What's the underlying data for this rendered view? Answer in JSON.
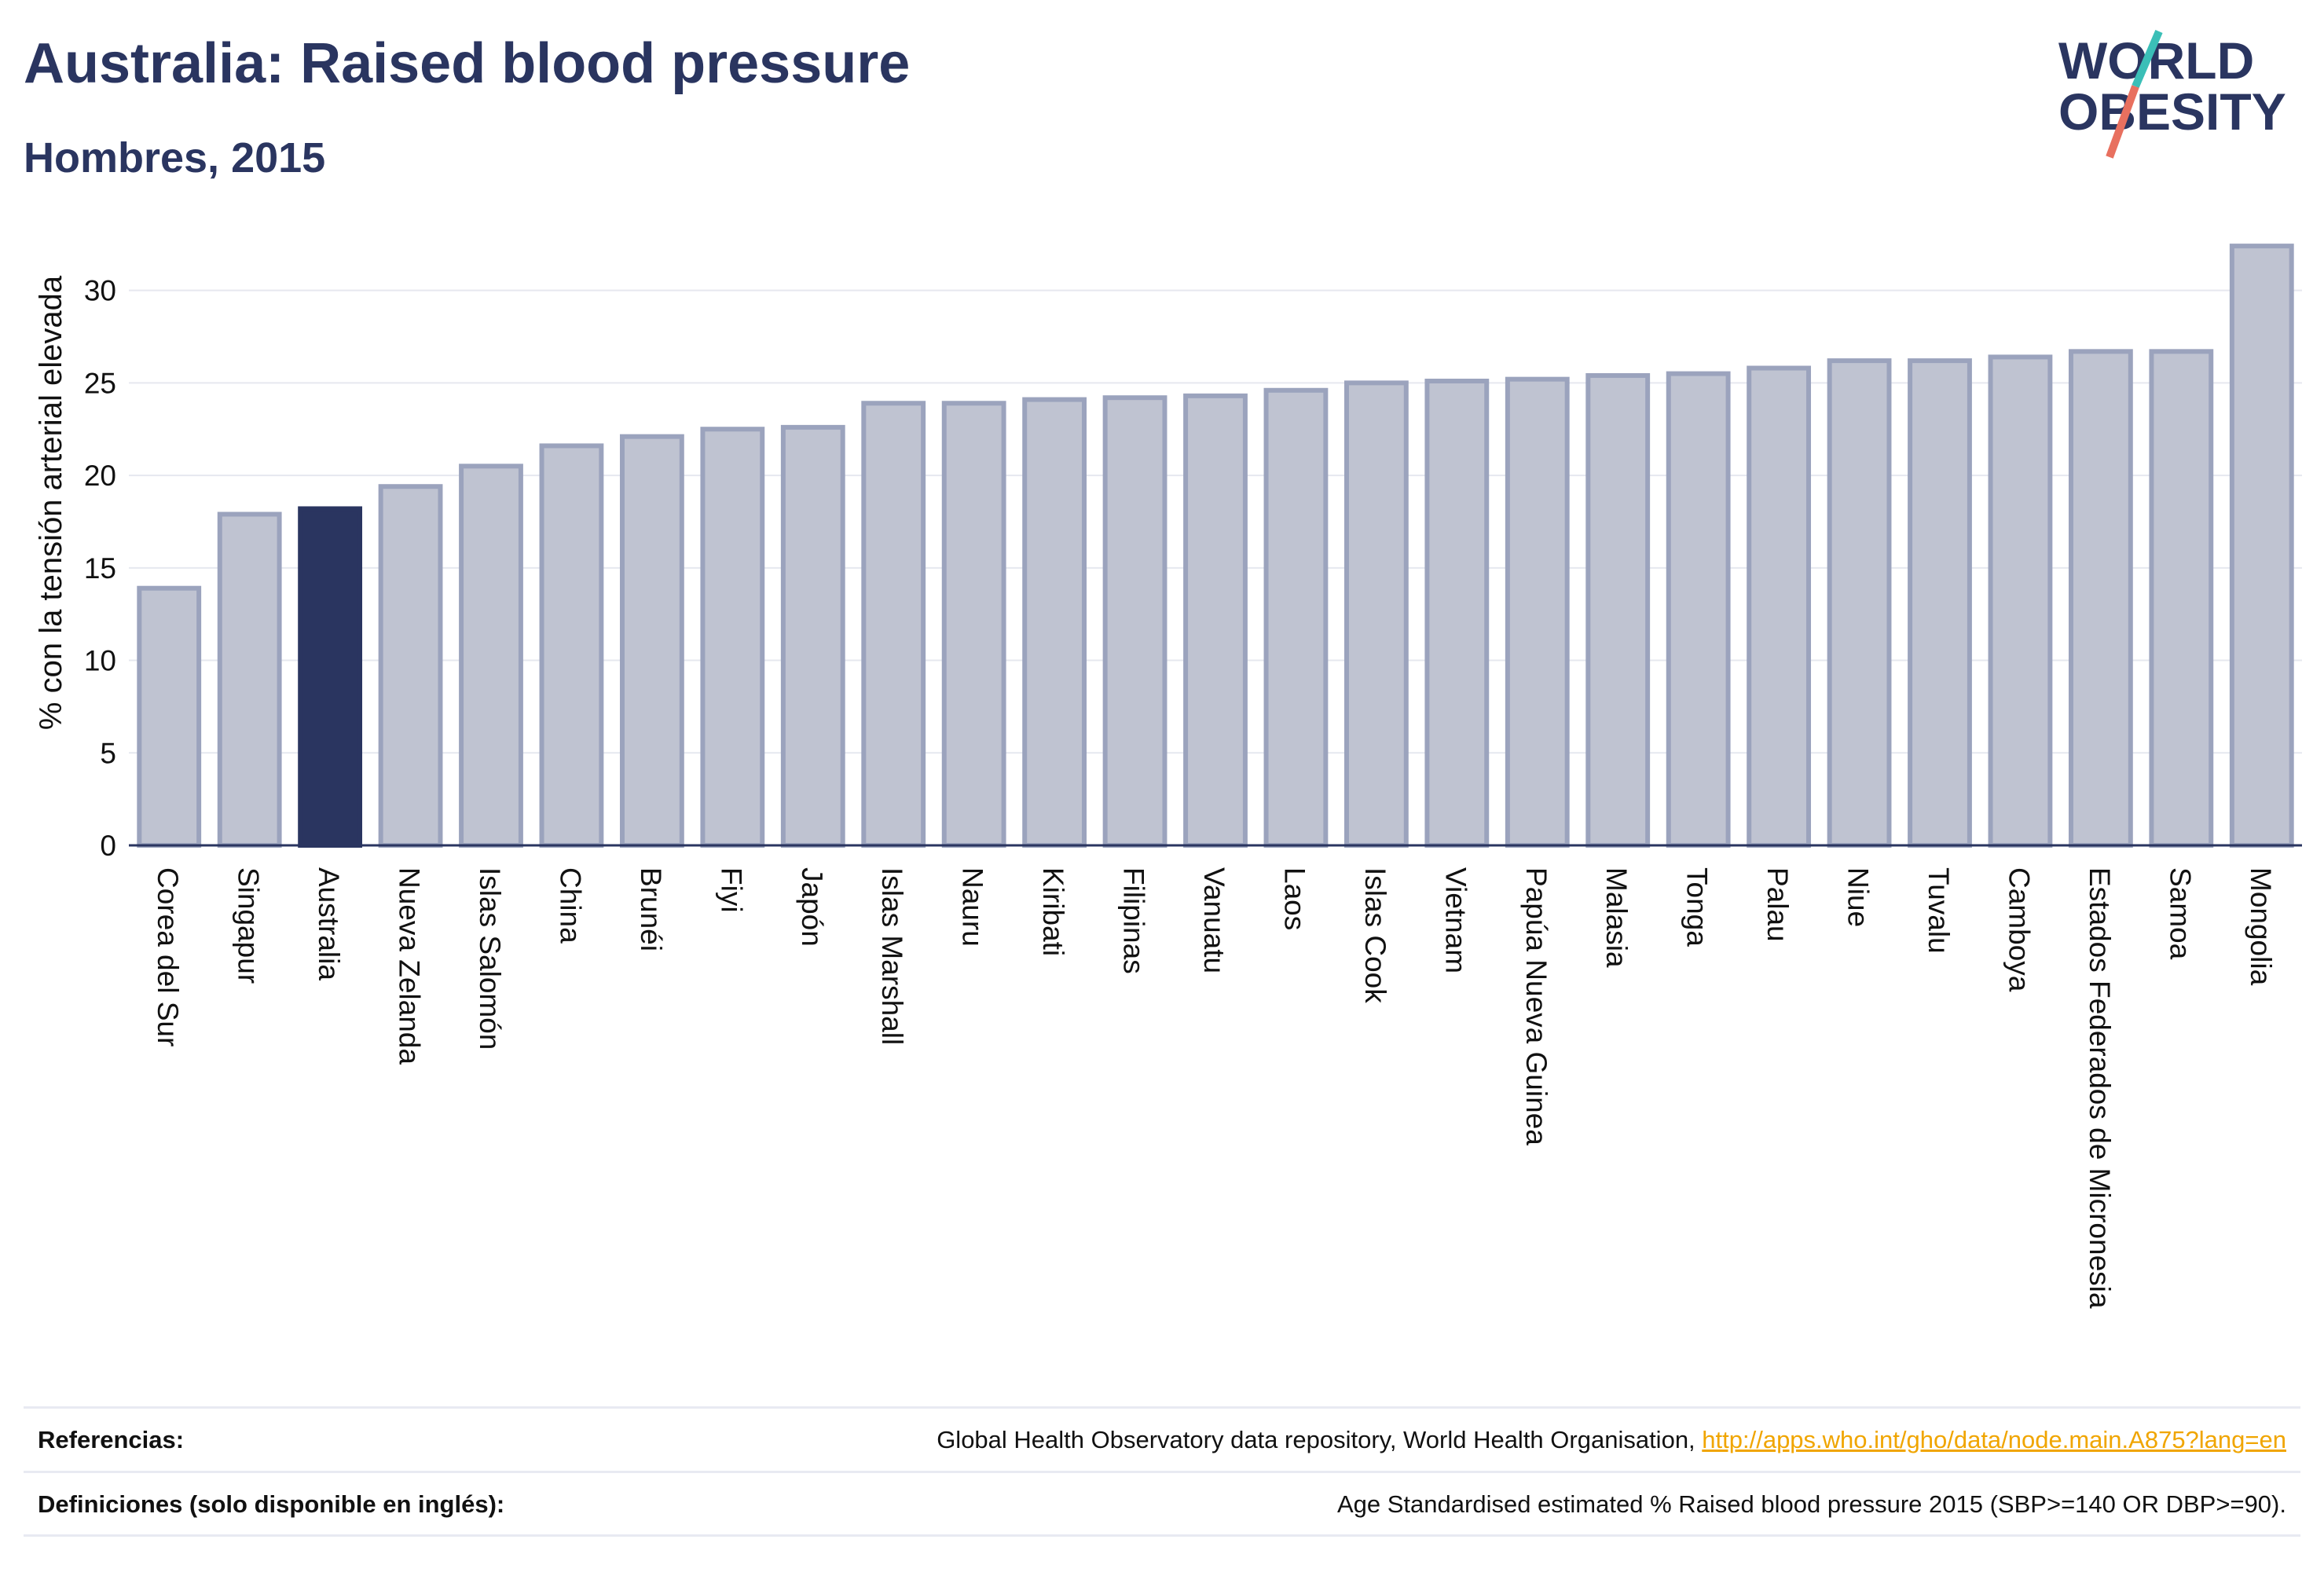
{
  "header": {
    "title": "Australia: Raised blood pressure",
    "subtitle": "Hombres, 2015"
  },
  "logo": {
    "line1": "WORLD",
    "line2": "OBESITY",
    "colors": {
      "text": "#2a3560",
      "slash_top": "#3bbfb7",
      "slash_bottom": "#e8705f"
    }
  },
  "footer": {
    "references_label": "Referencias:",
    "references_text": "Global Health Observatory data repository, World Health Organisation, ",
    "references_link": "http://apps.who.int/gho/data/node.main.A875?lang=en",
    "definitions_label": "Definiciones (solo disponible en inglés):",
    "definitions_text": "Age Standardised estimated % Raised blood pressure 2015 (SBP>=140 OR DBP>=90)."
  },
  "colors": {
    "bar": "#bfc3d1",
    "bar_border": "#9ba3bd",
    "highlight": "#2a3560",
    "grid": "#e6e8ef",
    "axis": "#2a3560"
  },
  "chart_data": {
    "type": "bar",
    "ylabel": "% con la tensión arterial elevada",
    "ylim": [
      0,
      33
    ],
    "yticks": [
      0,
      5,
      10,
      15,
      20,
      25,
      30
    ],
    "grid": true,
    "highlight": "Australia",
    "categories": [
      "Corea del Sur",
      "Singapur",
      "Australia",
      "Nueva Zelanda",
      "Islas Salomón",
      "China",
      "Brunéi",
      "Fiyi",
      "Japón",
      "Islas Marshall",
      "Nauru",
      "Kiribati",
      "Filipinas",
      "Vanuatu",
      "Laos",
      "Islas Cook",
      "Vietnam",
      "Papúa Nueva Guinea",
      "Malasia",
      "Tonga",
      "Palau",
      "Niue",
      "Tuvalu",
      "Camboya",
      "Estados Federados de Micronesia",
      "Samoa",
      "Mongolia"
    ],
    "values": [
      13.9,
      17.9,
      18.2,
      19.4,
      20.5,
      21.6,
      22.1,
      22.5,
      22.6,
      23.9,
      23.9,
      24.1,
      24.2,
      24.3,
      24.6,
      25.0,
      25.1,
      25.2,
      25.4,
      25.5,
      25.8,
      26.2,
      26.2,
      26.4,
      26.7,
      26.7,
      32.4
    ]
  }
}
